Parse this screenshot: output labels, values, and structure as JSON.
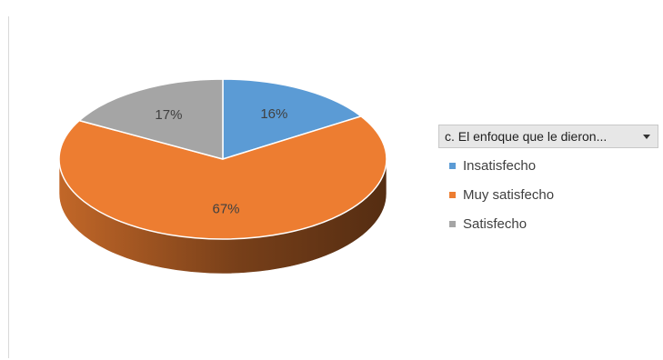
{
  "chart_data": {
    "type": "pie",
    "title": "",
    "categories": [
      "Insatisfecho",
      "Muy satisfecho",
      "Satisfecho"
    ],
    "values": [
      16,
      67,
      17
    ],
    "labels": [
      "16%",
      "67%",
      "17%"
    ],
    "colors": [
      "#5B9BD5",
      "#ED7D31",
      "#A5A5A5"
    ],
    "legend_position": "right",
    "style": "3d"
  },
  "filter": {
    "label": "c. El enfoque que le dieron...",
    "icon": "chevron-down-icon"
  }
}
